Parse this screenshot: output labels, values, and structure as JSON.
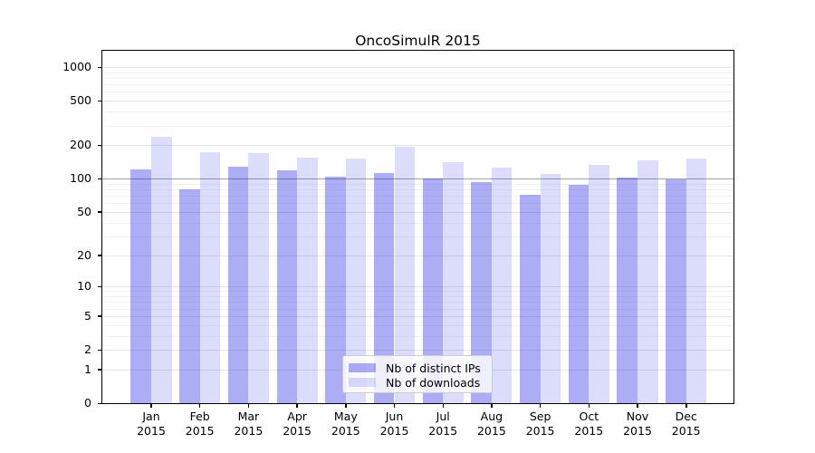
{
  "figure": {
    "title": "OncoSimulR 2015"
  },
  "legend": {
    "items": [
      {
        "label": "Nb of distinct IPs",
        "color": "rgba(20,20,230,0.35)"
      },
      {
        "label": "Nb of downloads",
        "color": "rgba(20,20,230,0.15)"
      }
    ]
  },
  "chart_data": {
    "type": "bar",
    "title": "OncoSimulR 2015",
    "categories": [
      "Jan",
      "Feb",
      "Mar",
      "Apr",
      "May",
      "Jun",
      "Jul",
      "Aug",
      "Sep",
      "Oct",
      "Nov",
      "Dec"
    ],
    "year": "2015",
    "series": [
      {
        "name": "Nb of distinct IPs",
        "color": "rgba(20,20,230,0.35)",
        "values": [
          122,
          80,
          128,
          120,
          105,
          113,
          100,
          94,
          71,
          88,
          103,
          99
        ]
      },
      {
        "name": "Nb of downloads",
        "color": "rgba(20,20,230,0.15)",
        "values": [
          236,
          172,
          169,
          155,
          152,
          195,
          140,
          125,
          111,
          134,
          145,
          153
        ]
      }
    ],
    "yscale": "log1p",
    "ylim": [
      0,
      1400
    ],
    "y_ticks": [
      0,
      1,
      2,
      5,
      10,
      20,
      50,
      100,
      200,
      500,
      1000
    ],
    "y_minor_ticks": [
      3,
      4,
      6,
      7,
      8,
      9,
      30,
      40,
      60,
      70,
      80,
      90,
      300,
      400,
      600,
      700,
      800,
      900
    ],
    "reference_line": 100,
    "grid": true,
    "legend_position": "inside-bottom-center",
    "xlabel": "",
    "ylabel": "",
    "colors": {
      "grid_major": "#e4e4e4",
      "grid_minor": "#f1f1f1",
      "reference_line": "#a3a3a3",
      "axis": "#000000"
    }
  }
}
